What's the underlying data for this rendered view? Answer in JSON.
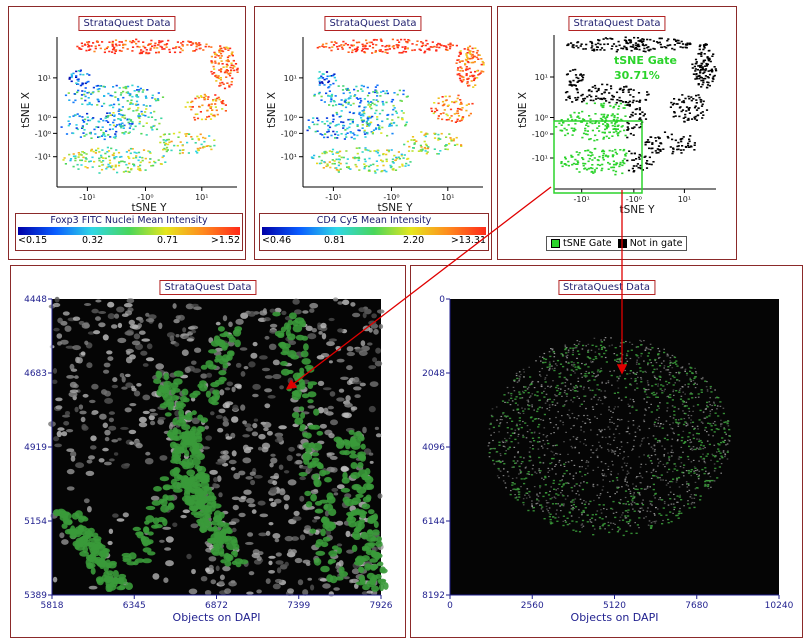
{
  "panel_title": "StrataQuest Data",
  "colors": {
    "gate_green": "#2bd32b",
    "arrow_red": "#e00000",
    "panel_border": "#8b2a2a",
    "axis_blue": "#1f1f8e"
  },
  "chart_data": [
    {
      "type": "scatter",
      "title": "StrataQuest Data",
      "xlabel": "tSNE Y",
      "ylabel": "tSNE X",
      "x_tick_labels": [
        "-10¹",
        "-10⁰",
        "10¹"
      ],
      "y_tick_labels": [
        "10¹",
        "10⁰",
        "-10⁰",
        "-10¹"
      ],
      "color_scale": {
        "label": "Foxp3  FITC Nuclei Mean Intensity",
        "ticks": [
          "<0.15",
          "0.32",
          "0.71",
          ">1.52"
        ]
      }
    },
    {
      "type": "scatter",
      "title": "StrataQuest Data",
      "xlabel": "tSNE Y",
      "ylabel": "tSNE X",
      "x_tick_labels": [
        "-10¹",
        "-10⁰",
        "10¹"
      ],
      "y_tick_labels": [
        "10¹",
        "10⁰",
        "-10⁰",
        "-10¹"
      ],
      "color_scale": {
        "label": "CD4 Cy5 Mean Intensity",
        "ticks": [
          "<0.46",
          "0.81",
          "2.20",
          ">13.31"
        ]
      }
    },
    {
      "type": "scatter",
      "title": "StrataQuest Data",
      "xlabel": "tSNE Y",
      "ylabel": "tSNE X",
      "x_tick_labels": [
        "-10¹",
        "-10⁰",
        "10¹"
      ],
      "y_tick_labels": [
        "10¹",
        "10⁰",
        "-10⁰",
        "-10¹"
      ],
      "gate": {
        "name": "tSNE Gate",
        "percent": "30.71%"
      },
      "legend": {
        "position": "bottom",
        "entries": [
          "tSNE Gate",
          "Not in gate"
        ]
      }
    },
    {
      "type": "heatmap",
      "title": "StrataQuest Data",
      "xlabel": "Objects on DAPI",
      "ylabel": "",
      "x_ticks": [
        "5818",
        "6345",
        "6872",
        "7399",
        "7926"
      ],
      "y_ticks": [
        "4448",
        "4683",
        "4919",
        "5154",
        "5389"
      ],
      "xlim": [
        5818,
        7926
      ],
      "ylim": [
        4448,
        5389
      ]
    },
    {
      "type": "heatmap",
      "title": "StrataQuest Data",
      "xlabel": "Objects on DAPI",
      "ylabel": "",
      "x_ticks": [
        "0",
        "2560",
        "5120",
        "7680",
        "10240"
      ],
      "y_ticks": [
        "0",
        "2048",
        "4096",
        "6144",
        "8192"
      ],
      "xlim": [
        0,
        10240
      ],
      "ylim": [
        0,
        8192
      ]
    }
  ]
}
